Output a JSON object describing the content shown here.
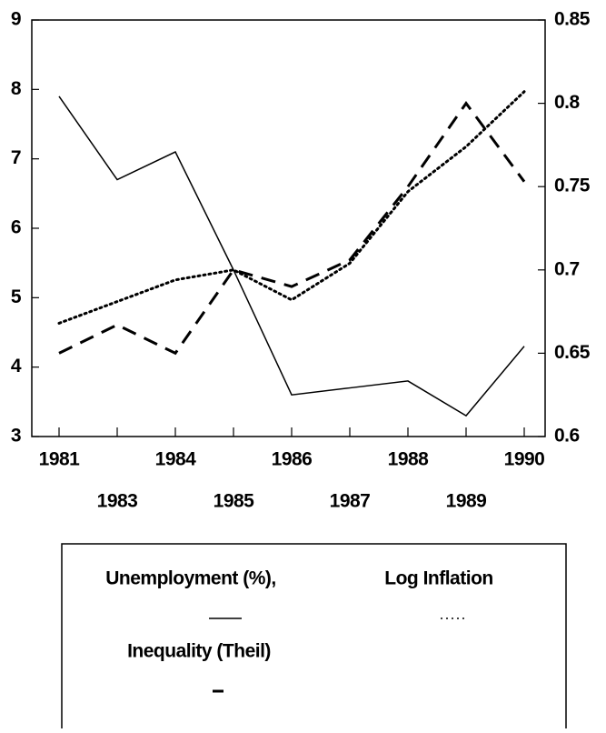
{
  "chart_data": {
    "type": "line",
    "categories": [
      "1981",
      "1983",
      "1984",
      "1985",
      "1986",
      "1987",
      "1988",
      "1989",
      "1990"
    ],
    "series": [
      {
        "name": "Unemployment (%),",
        "color": "#000000",
        "dash": "solid",
        "values": [
          7.9,
          6.7,
          7.1,
          5.4,
          3.6,
          3.7,
          3.8,
          3.3,
          4.3
        ]
      },
      {
        "name": "Log Inflation",
        "color": "#000000",
        "dash": "dotted",
        "axis": "y2",
        "values": [
          0.668,
          0.681,
          0.694,
          0.7,
          0.682,
          0.704,
          0.747,
          0.774,
          0.807
        ]
      },
      {
        "name": "Inequality (Theil)",
        "color": "#000000",
        "dash": "dashed",
        "axis": "y2",
        "values": [
          0.65,
          0.667,
          0.65,
          0.7,
          0.69,
          0.706,
          0.75,
          0.8,
          0.753
        ]
      }
    ],
    "ylim": [
      3,
      9
    ],
    "yticks": [
      3,
      4,
      5,
      6,
      7,
      8,
      9
    ],
    "y2lim": [
      0.6,
      0.85
    ],
    "y2ticks": [
      0.6,
      0.65,
      0.7,
      0.75,
      0.8,
      0.85
    ],
    "grid": false
  }
}
